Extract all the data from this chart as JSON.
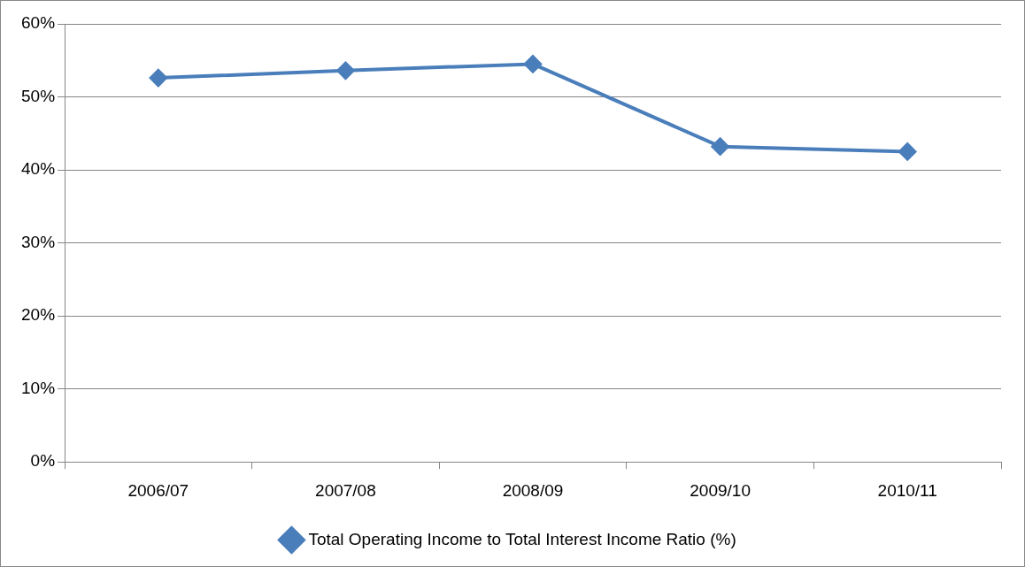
{
  "chart_data": {
    "type": "line",
    "categories": [
      "2006/07",
      "2007/08",
      "2008/09",
      "2009/10",
      "2010/11"
    ],
    "series": [
      {
        "name": "Total Operating Income to Total Interest Income Ratio (%)",
        "color": "#4a7ebb",
        "values": [
          52.6,
          53.6,
          54.5,
          43.2,
          42.5
        ]
      }
    ],
    "ylim": [
      0,
      60
    ],
    "yticks": [
      {
        "value": 0,
        "label": "0%"
      },
      {
        "value": 10,
        "label": "10%"
      },
      {
        "value": 20,
        "label": "20%"
      },
      {
        "value": 30,
        "label": "30%"
      },
      {
        "value": 40,
        "label": "40%"
      },
      {
        "value": 50,
        "label": "50%"
      },
      {
        "value": 60,
        "label": "60%"
      }
    ],
    "grid": "y",
    "legend": "bottom",
    "marker": "diamond",
    "line_style": "solid"
  }
}
